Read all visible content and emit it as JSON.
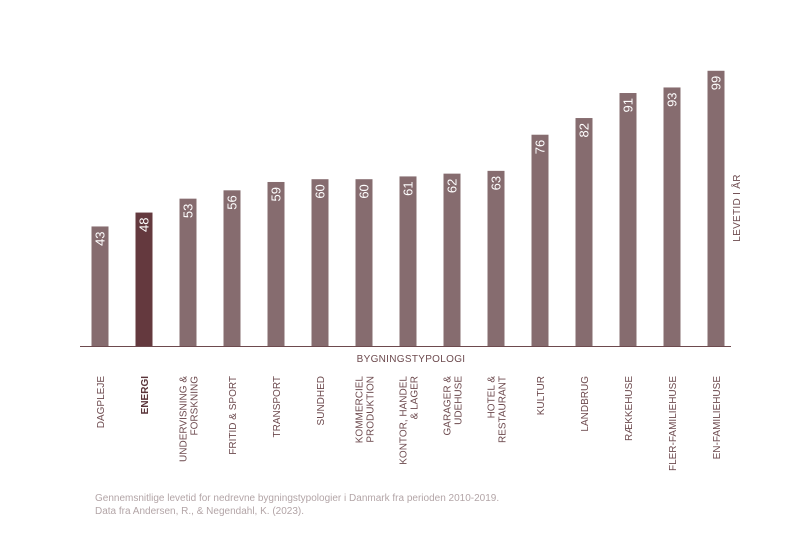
{
  "chart_data": {
    "type": "bar",
    "categories": [
      [
        "DAGPLEJE"
      ],
      [
        "ENERGI"
      ],
      [
        "UNDERVISNING &",
        "FORSKNING"
      ],
      [
        "FRITID & SPORT"
      ],
      [
        "TRANSPORT"
      ],
      [
        "SUNDHED"
      ],
      [
        "KOMMERCIEL",
        "PRODUKTION"
      ],
      [
        "KONTOR, HANDEL",
        "& LAGER"
      ],
      [
        "GARAGER &",
        "UDEHUSE"
      ],
      [
        "HOTEL &",
        "RESTAURANT"
      ],
      [
        "KULTUR"
      ],
      [
        "LANDBRUG"
      ],
      [
        "RÆKKEHUSE"
      ],
      [
        "FLER-FAMILIEHUSE"
      ],
      [
        "EN-FAMILIEHUSE"
      ]
    ],
    "values": [
      43,
      48,
      53,
      56,
      59,
      60,
      60,
      61,
      62,
      63,
      76,
      82,
      91,
      93,
      99
    ],
    "highlight_index": 1,
    "xlabel": "BYGNINGSTYPOLOGI",
    "ylabel": "LEVETID I ÅR",
    "ylim": [
      0,
      100
    ],
    "grid": false,
    "colors": {
      "bar": "#866c6f",
      "highlight": "#64393e",
      "axis": "#6d4a4e"
    }
  },
  "footnote": {
    "line1": "Gennemsnitlige levetid for nedrevne bygningstypologier i Danmark fra perioden 2010-2019.",
    "line2": "Data fra Andersen, R., & Negendahl, K. (2023)."
  }
}
